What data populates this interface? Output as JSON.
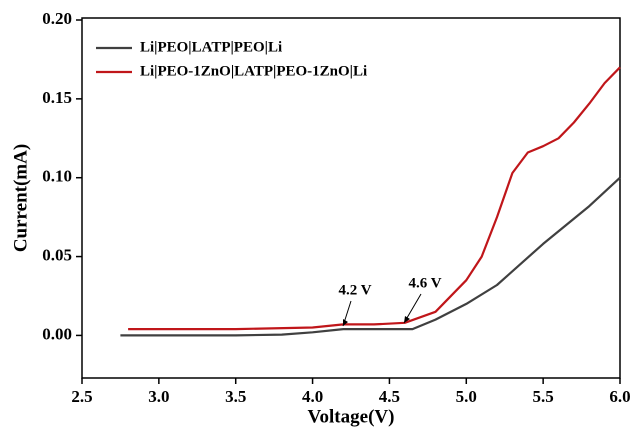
{
  "chart_data": {
    "type": "line",
    "xlabel": "Voltage(V)",
    "ylabel": "Current(mA)",
    "series": [
      {
        "name": "Li|PEO|LATP|PEO|Li",
        "color": "#404040",
        "x": [
          2.75,
          3.0,
          3.5,
          3.8,
          4.0,
          4.2,
          4.3,
          4.5,
          4.65,
          4.8,
          5.0,
          5.2,
          5.5,
          5.8,
          6.0
        ],
        "values": [
          0.0,
          0.0,
          0.0,
          0.0005,
          0.002,
          0.004,
          0.004,
          0.004,
          0.004,
          0.01,
          0.02,
          0.032,
          0.058,
          0.082,
          0.1
        ]
      },
      {
        "name": "Li|PEO-1ZnO|LATP|PEO-1ZnO|Li",
        "color": "#c0161a",
        "x": [
          2.8,
          3.0,
          3.5,
          4.0,
          4.2,
          4.4,
          4.6,
          4.8,
          5.0,
          5.1,
          5.2,
          5.3,
          5.4,
          5.5,
          5.6,
          5.7,
          5.8,
          5.9,
          6.0
        ],
        "values": [
          0.004,
          0.004,
          0.004,
          0.005,
          0.007,
          0.007,
          0.008,
          0.015,
          0.035,
          0.05,
          0.075,
          0.103,
          0.116,
          0.12,
          0.125,
          0.135,
          0.147,
          0.16,
          0.17
        ]
      }
    ],
    "annotations": [
      "4.2 V",
      "4.6 V"
    ],
    "xlim": [
      2.5,
      6.0
    ],
    "ylim": [
      -0.027,
      0.2
    ],
    "xticks": [
      2.5,
      {
        "value": 3,
        "label": "3.0"
      },
      3.5,
      {
        "value": 4,
        "label": "4.0"
      },
      4.5,
      {
        "value": 5,
        "label": "5.0"
      },
      5.5,
      {
        "value": 6,
        "label": "6.0"
      }
    ],
    "yticks": [
      {
        "value": 0,
        "label": "0.00"
      },
      0.05,
      {
        "value": 0.1,
        "label": "0.10"
      },
      0.15,
      {
        "value": 0.2,
        "label": "0.20"
      }
    ],
    "legend": "upper left"
  }
}
